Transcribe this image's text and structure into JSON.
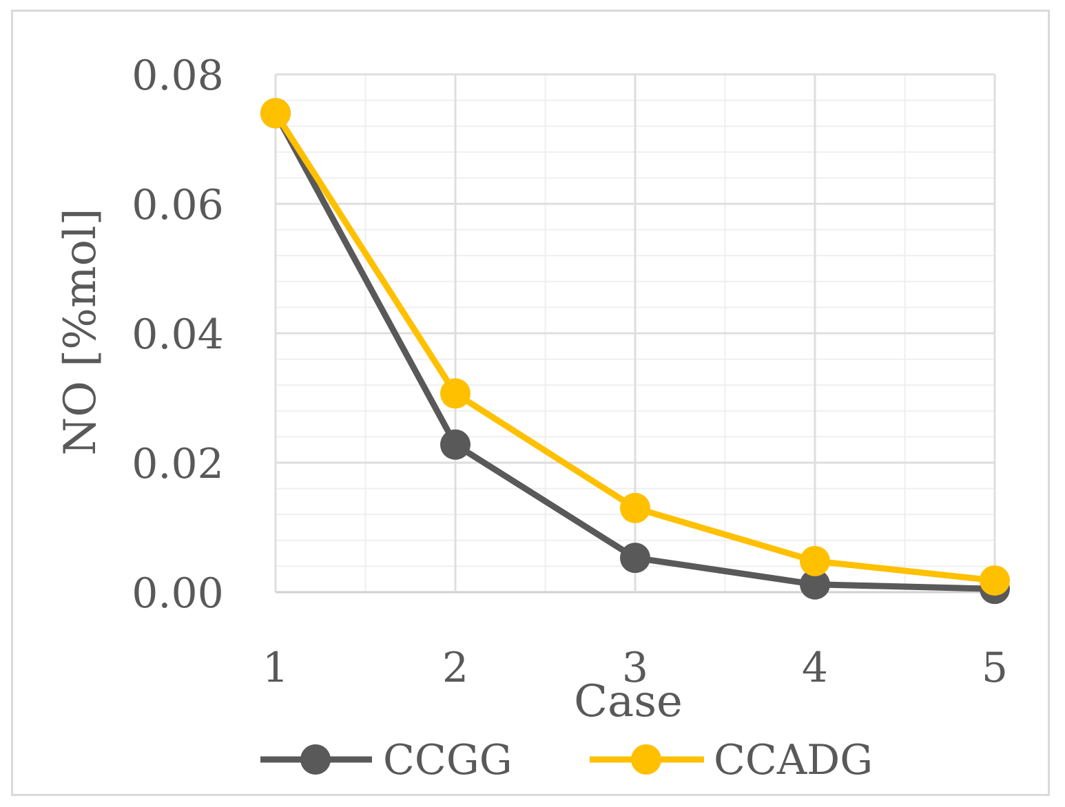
{
  "chart_data": {
    "type": "line",
    "title": "",
    "xlabel": "Case",
    "ylabel": "NO [%mol]",
    "categories": [
      "1",
      "2",
      "3",
      "4",
      "5"
    ],
    "ylim": [
      0,
      0.08
    ],
    "yticks": [
      "0.00",
      "0.02",
      "0.04",
      "0.06",
      "0.08"
    ],
    "grid": true,
    "legend_position": "bottom",
    "series": [
      {
        "name": "CCGG",
        "color": "#595959",
        "values": [
          0.074,
          0.0228,
          0.0053,
          0.0012,
          0.0005
        ]
      },
      {
        "name": "CCADG",
        "color": "#ffc000",
        "values": [
          0.074,
          0.0307,
          0.013,
          0.0048,
          0.0018
        ]
      }
    ]
  }
}
